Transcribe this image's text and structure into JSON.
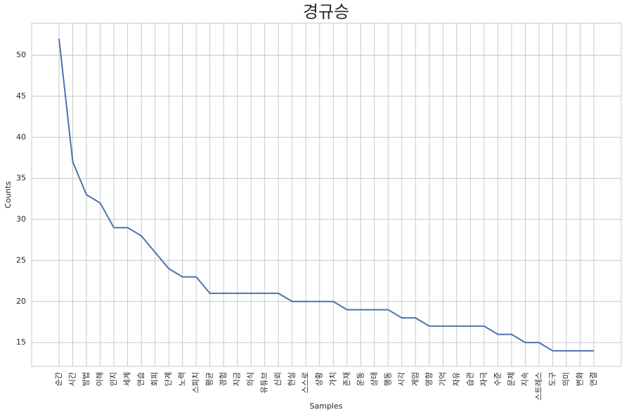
{
  "chart_data": {
    "type": "line",
    "title": "경규승",
    "x_label": "Samples",
    "y_label": "Counts",
    "categories": [
      "순간",
      "시간",
      "방법",
      "이해",
      "인지",
      "세계",
      "연습",
      "회피",
      "단계",
      "노력",
      "스피치",
      "평균",
      "경험",
      "지금",
      "의식",
      "유튜브",
      "신뢰",
      "현실",
      "스스로",
      "상황",
      "가치",
      "존재",
      "운동",
      "상태",
      "행동",
      "시각",
      "게임",
      "영향",
      "기억",
      "자유",
      "습관",
      "자극",
      "수준",
      "문제",
      "지속",
      "스트레스",
      "도구",
      "의미",
      "변화",
      "연결"
    ],
    "values": [
      52,
      37,
      33,
      32,
      29,
      29,
      28,
      26,
      24,
      23,
      23,
      21,
      21,
      21,
      21,
      21,
      21,
      20,
      20,
      20,
      20,
      19,
      19,
      19,
      19,
      18,
      18,
      17,
      17,
      17,
      17,
      17,
      16,
      16,
      15,
      15,
      14,
      14,
      14,
      14
    ],
    "color": "#4c72b0",
    "ylim": [
      12.1,
      53.9
    ],
    "yticks": [
      15,
      20,
      25,
      30,
      35,
      40,
      45,
      50
    ],
    "grid": true
  }
}
